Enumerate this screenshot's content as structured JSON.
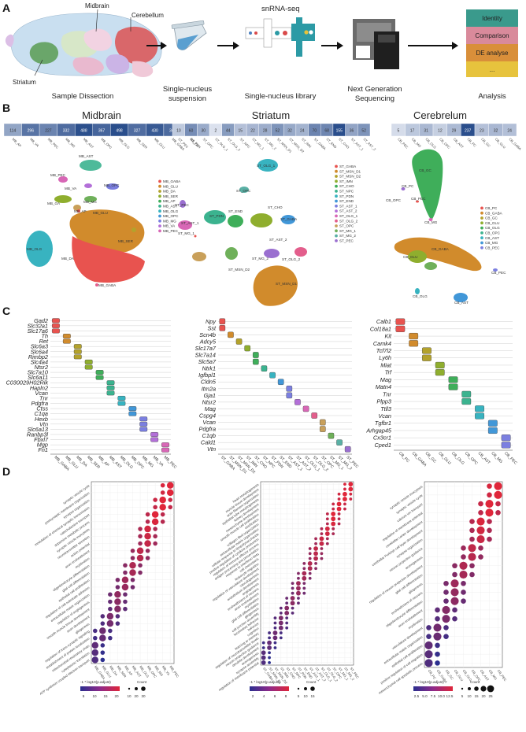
{
  "panels": {
    "a": "A",
    "b": "B",
    "c": "C",
    "d": "D"
  },
  "panel_a": {
    "brain_labels": [
      "Midbrain",
      "Cerebellum",
      "Striatum"
    ],
    "snrna_label": "snRNA-seq",
    "steps": [
      [
        "Sample Dissection"
      ],
      [
        "Single-nucleus",
        "suspension"
      ],
      [
        "Single-nucleus library"
      ],
      [
        "Next Generation",
        "Sequencing"
      ],
      [
        "Analysis"
      ]
    ],
    "analysis_boxes": [
      {
        "label": "Identity",
        "color": "#3a9a8c"
      },
      {
        "label": "Comparison",
        "color": "#d98a9b"
      },
      {
        "label": "DE analyse",
        "color": "#d98f3a"
      },
      {
        "label": "...",
        "color": "#e7c33d"
      }
    ]
  },
  "panel_b": [
    {
      "title": "Midbrain",
      "counts": [
        114,
        296,
        227,
        332,
        488,
        367,
        498,
        327,
        430,
        340,
        269
      ],
      "clusters": [
        "MB_AP",
        "MB_VA",
        "MB_PEC",
        "MB_MG",
        "MB_AST",
        "MB_OPC",
        "MB_OLG",
        "MB_SER",
        "MB_GLU",
        "MB_GABA",
        "MB_DA"
      ],
      "legend": [
        "MB_GABA",
        "MB_GLU",
        "MB_DA",
        "MB_SER",
        "MB_AP",
        "MB_AST",
        "MB_OLG",
        "MB_OPC",
        "MB_MG",
        "MB_VA",
        "MB_PEC"
      ],
      "umap_labels": [
        "MB_AST",
        "MB_PEC",
        "MB_VA",
        "MB_OPC",
        "MB_GA",
        "MB_MG",
        "MB_AP",
        "MB_OLG",
        "MB_GLU",
        "MB_SER",
        "MB_GABA",
        "MB_DA"
      ]
    },
    {
      "title": "Striatum",
      "counts": [
        10,
        60,
        30,
        2,
        44,
        15,
        22,
        28,
        52,
        32,
        24,
        70,
        68,
        155,
        36,
        52
      ],
      "clusters": [
        "ST_PEC",
        "ST_PDN",
        "ST_OPC",
        "ST_OLG_1",
        "ST_OLG_2",
        "ST_NPC",
        "ST_MG_1",
        "ST_MG_2",
        "ST_MSN_D1",
        "ST_MSN_D2",
        "ST_IMN",
        "ST_GABA",
        "ST_END",
        "ST_CHO",
        "ST_AST_1",
        "ST_AST_2"
      ],
      "legend": [
        "ST_GABA",
        "ST_MSN_D1",
        "ST_MSN_D2",
        "ST_IMN",
        "ST_CHO",
        "ST_NPC",
        "ST_PDN",
        "ST_END",
        "ST_AST_1",
        "ST_AST_2",
        "ST_OLG_1",
        "ST_OLG_2",
        "ST_OPC",
        "ST_MG_1",
        "ST_MG_2",
        "ST_PEC"
      ],
      "umap_labels": [
        "ST_OLG_1",
        "ST_OPC",
        "ST_PEC",
        "ST_MG_1",
        "ST_PDN",
        "ST_END",
        "ST_AST_1",
        "ST_AST_2",
        "ST_CHO",
        "ST_GABA",
        "ST_MG_2",
        "ST_OLG_2",
        "ST_MSN_D2",
        "ST_MSN_D1"
      ]
    },
    {
      "title": "Cerebrelum",
      "counts": [
        5,
        17,
        31,
        12,
        29,
        237,
        23,
        32,
        24
      ],
      "clusters": [
        "CB_PEC",
        "CB_MG",
        "CB_OLG",
        "CB_OPC",
        "CB_AST",
        "CB_PC",
        "CB_GC",
        "CB_GLU",
        "CB_GABA"
      ],
      "legend": [
        "CB_PC",
        "CB_GABA",
        "CB_GC",
        "CB_GLU",
        "CB_OLG",
        "CB_OPC",
        "CB_AST",
        "CB_MG",
        "CB_PEC"
      ],
      "umap_labels": [
        "CB_GC",
        "CB_PC",
        "CB_OPC",
        "CB_PEC",
        "CB_MG",
        "CB_GABA",
        "CB_GLU",
        "CB_OLG",
        "CB_PEC",
        "CB_AST"
      ]
    }
  ],
  "panel_c": [
    {
      "genes": [
        "Gad2",
        "Slc32a1",
        "Slc17a6",
        "Th",
        "Ret",
        "Slc6a3",
        "Slc6a4",
        "Rimbp2",
        "Slc4a4",
        "Ntsr2",
        "Slc7a10",
        "Slc6a11",
        "C030029H02Rik",
        "Hapln2",
        "Vcan",
        "Tnr",
        "Pdgfra",
        "Ctss",
        "C1qa",
        "Hexb",
        "Vtn",
        "Slc6a13",
        "Ranbp3l",
        "Fbxl7",
        "Mgp",
        "Fn1"
      ],
      "clusters": [
        "MB_GABA",
        "MB_GLU",
        "MB_DA",
        "MB_SER",
        "MB_AP",
        "MB_AST",
        "MB_OLG",
        "MB_OPC",
        "MB_MG",
        "MB_VA",
        "MB_PEC"
      ]
    },
    {
      "genes": [
        "Npy",
        "Sst",
        "Scn4b",
        "Adcy5",
        "Slc17a7",
        "Slc7a14",
        "Slc5a7",
        "Ntrk1",
        "Igfbpl1",
        "Cldn5",
        "Itm2a",
        "Gja1",
        "Ntsr2",
        "Mag",
        "Cspg4",
        "Vcan",
        "Pdgfra",
        "C1qb",
        "Cald1",
        "Vtn"
      ],
      "clusters": [
        "ST_GABA",
        "ST_MSN_D1",
        "ST_MSN_D2",
        "ST_IMN",
        "ST_CHO",
        "ST_NPC",
        "ST_PDN",
        "ST_END",
        "ST_AST_1",
        "ST_AST_2",
        "ST_OLG_1",
        "ST_OLG_2",
        "ST_OPC",
        "ST_MG_1",
        "ST_MG_2",
        "ST_PEC"
      ]
    },
    {
      "genes": [
        "Calb1",
        "Col18a1",
        "Kit",
        "Camk4",
        "Tcf7l2",
        "Ly6h",
        "Miat",
        "Trf",
        "Mag",
        "Matn4",
        "Tnr",
        "Plpp3",
        "Ttll3",
        "Vcan",
        "Tgfbr1",
        "Arhgap45",
        "Cx3cr1",
        "Cped1"
      ],
      "clusters": [
        "CB_PC",
        "CB_GABA",
        "CB_GC",
        "CB_GLU",
        "CB_OLG",
        "CB_OPC",
        "CB_AST",
        "CB_MG",
        "CB_PEC"
      ]
    }
  ],
  "panel_d": [
    {
      "terms": [
        "ATP synthesis coupled electron transport",
        "cytoplasmic translation",
        "mitochondrial respiratory chain",
        "establishment of protein localization",
        "regulation of trans-synaptic signaling",
        "gliogenesis",
        "axon development",
        "smooth muscle tissue development",
        "regulation of angiogenesis",
        "extracellular matrix organization",
        "regulation of cell-substrate adhesion",
        "epithelial cell proliferation",
        "glial cell differentiation",
        "oligodendrocyte differentiation",
        "myelination",
        "axon ensheathment",
        "action potential",
        "neurotransmitter secretion",
        "synaptic vesicle exocytosis",
        "dopamine metabolic process",
        "catecholamine transport",
        "modulation of chemical synaptic transmission",
        "synapse organization",
        "postsynaptic membrane organization",
        "synaptic vesicle cycle"
      ],
      "clusters": [
        "MB_GABA",
        "MB_GLU",
        "MB_DA",
        "MB_SER",
        "MB_AP",
        "MB_AST",
        "MB_OLG",
        "MB_OPC",
        "MB_MG",
        "MB_VA",
        "MB_PEC"
      ],
      "color_title": "-1 * log10(p.adjust)",
      "color_ticks": [
        "5",
        "10",
        "15",
        "20"
      ],
      "size_title": "Count",
      "size_ticks": [
        "10",
        "20",
        "30"
      ]
    },
    {
      "terms": [
        "regulation of membrane potential",
        "synapse assembly",
        "axonogenesis",
        "dendrite development",
        "neuron projection guidance",
        "regulation of neurotransmitter levels",
        "learning or memory",
        "cognition",
        "behavior",
        "locomotory behavior",
        "cell junction assembly",
        "gliogenesis",
        "glial cell differentiation",
        "myelination",
        "axon ensheathment",
        "ensheathment of neurons",
        "angiogenesis",
        "endothelium development",
        "vasculogenesis",
        "regulation of vasculature development",
        "leukocyte migration",
        "cell chemotaxis",
        "response to interferon-beta",
        "antigen processing and presentation",
        "regulation of immune effector process",
        "positive regulation of cytokine production",
        "cellular response to lipopolysaccharide",
        "extracellular matrix organization",
        "collagen fibril organization",
        "ossification",
        "smooth muscle cell proliferation",
        "mesenchyme development",
        "kidney development",
        "epithelial tube morphogenesis",
        "actin filament organization",
        "muscle tissue development",
        "heart morphogenesis"
      ],
      "clusters": [
        "ST_GABA",
        "ST_MSN_D1",
        "ST_MSN_D2",
        "ST_IMN",
        "ST_CHO",
        "ST_NPC",
        "ST_PDN",
        "ST_END",
        "ST_AST_1",
        "ST_AST_2",
        "ST_OLG_1",
        "ST_OLG_2",
        "ST_OPC",
        "ST_MG_1",
        "ST_MG_2",
        "ST_PEC"
      ],
      "color_title": "-1 * log10(p.adjust)",
      "color_ticks": [
        "2",
        "4",
        "6",
        "8"
      ],
      "size_title": "Count",
      "size_ticks": [
        "5",
        "10",
        "15"
      ]
    },
    {
      "terms": [
        "mesenchymal cell apoptotic process",
        "positive regulation of cell migration",
        "epithelial cell proliferation",
        "extracellular matrix organization",
        "vasculature development",
        "myelination",
        "axon ensheathment",
        "oligodendrocyte differentiation",
        "ensheathment of neurons",
        "gliogenesis",
        "glial cell differentiation",
        "regulation of neuron projection development",
        "axonogenesis",
        "neuron projection guidance",
        "synapse organization",
        "cerebellar Purkinje cell layer development",
        "cerebellar cortex development",
        "regulation of membrane potential",
        "calcium ion transport",
        "synaptic vesicle cycle",
        "synaptic vesicle exocytosis"
      ],
      "clusters": [
        "CB_PC",
        "CB_GABA",
        "CB_GC",
        "CB_GLU",
        "CB_OLG",
        "CB_OPC",
        "CB_AST",
        "CB_MG",
        "CB_PEC"
      ],
      "color_title": "-1 * log10(p.adjust)",
      "color_ticks": [
        "2.5",
        "5.0",
        "7.5",
        "10.0",
        "12.5"
      ],
      "size_title": "Count",
      "size_ticks": [
        "5",
        "10",
        "15",
        "20",
        "25"
      ]
    }
  ],
  "colors": {
    "heat_low": "#f2f4fa",
    "heat_high": "#2a4e8c",
    "dot_low": "#2b2f8f",
    "dot_high": "#e0263a",
    "cluster_palette": [
      "#e8534f",
      "#d18b2c",
      "#b3a22c",
      "#8fae2e",
      "#3fae5a",
      "#3bb38f",
      "#38b3c0",
      "#4197d8",
      "#7b7fe0",
      "#b36fd8",
      "#d867b6",
      "#e35e8c",
      "#c9a05a",
      "#6fb05a",
      "#5ab0a5",
      "#9a6fd0"
    ]
  }
}
